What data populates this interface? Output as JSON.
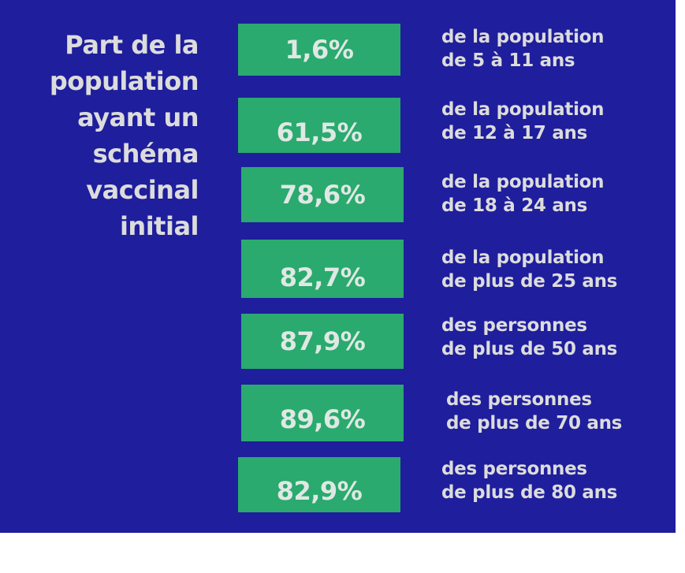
{
  "heading": {
    "lines": [
      "Part de la",
      "population",
      "ayant un",
      "schéma",
      "vaccinal",
      "initial"
    ]
  },
  "rows": [
    {
      "value": "1,6%",
      "line1": "de la population",
      "line2": "de 5 à 11 ans"
    },
    {
      "value": "61,5%",
      "line1": "de la population",
      "line2": "de 12 à 17 ans"
    },
    {
      "value": "78,6%",
      "line1": "de la population",
      "line2": "de 18 à 24 ans"
    },
    {
      "value": "82,7%",
      "line1": "de la population",
      "line2": "de plus de 25 ans"
    },
    {
      "value": "87,9%",
      "line1": "des personnes",
      "line2": "de plus de 50 ans"
    },
    {
      "value": "89,6%",
      "line1": "des personnes",
      "line2": "de plus de 70 ans"
    },
    {
      "value": "82,9%",
      "line1": "des personnes",
      "line2": "de plus de 80 ans"
    }
  ],
  "colors": {
    "background": "#1f1e9c",
    "box": "#2aaa6e",
    "text": "#dcdcdc"
  }
}
